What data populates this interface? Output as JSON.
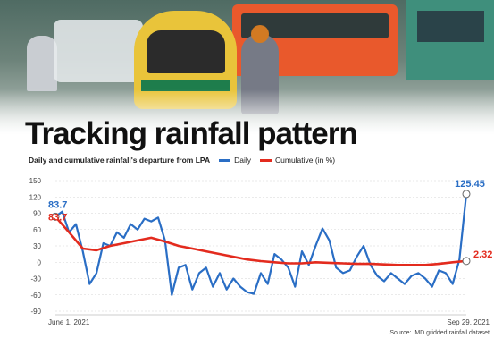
{
  "title": "Tracking rainfall pattern",
  "subtitle": "Daily and cumulative rainfall's departure from LPA",
  "legend": {
    "daily_label": "Daily",
    "cumulative_label": "Cumulative (in %)"
  },
  "source": "Source: IMD gridded rainfall dataset",
  "colors": {
    "daily": "#2a6ec5",
    "cumulative": "#e32b1e",
    "grid": "#d4d4d4"
  },
  "chart_data": {
    "type": "line",
    "title": "Tracking rainfall pattern",
    "subtitle": "Daily and cumulative rainfall's departure from LPA",
    "xlabel": "",
    "ylabel": "",
    "x_tick_labels": [
      "June 1, 2021",
      "Sep 29, 2021"
    ],
    "x_range": [
      "2021-06-01",
      "2021-09-29"
    ],
    "ylim": [
      -90,
      150
    ],
    "yticks": [
      150,
      120,
      90,
      60,
      30,
      0,
      -30,
      -60,
      -90
    ],
    "grid": false,
    "legend_position": "top",
    "annotations": [
      {
        "series": "Daily",
        "label": "83.7",
        "date": "2021-06-01",
        "value": 83.7
      },
      {
        "series": "Cumulative (in %)",
        "label": "83.7",
        "date": "2021-06-01",
        "value": 83.7
      },
      {
        "series": "Daily",
        "label": "125.45",
        "date": "2021-09-29",
        "value": 125.45
      },
      {
        "series": "Cumulative (in %)",
        "label": "2.32",
        "date": "2021-09-29",
        "value": 2.32
      }
    ],
    "series": [
      {
        "name": "Daily",
        "points": [
          [
            "2021-06-01",
            83.7
          ],
          [
            "2021-06-03",
            93
          ],
          [
            "2021-06-05",
            55
          ],
          [
            "2021-06-07",
            70
          ],
          [
            "2021-06-09",
            20
          ],
          [
            "2021-06-11",
            -40
          ],
          [
            "2021-06-13",
            -20
          ],
          [
            "2021-06-15",
            35
          ],
          [
            "2021-06-17",
            30
          ],
          [
            "2021-06-19",
            55
          ],
          [
            "2021-06-21",
            45
          ],
          [
            "2021-06-23",
            70
          ],
          [
            "2021-06-25",
            60
          ],
          [
            "2021-06-27",
            80
          ],
          [
            "2021-06-29",
            75
          ],
          [
            "2021-07-01",
            82
          ],
          [
            "2021-07-03",
            40
          ],
          [
            "2021-07-05",
            -60
          ],
          [
            "2021-07-07",
            -10
          ],
          [
            "2021-07-09",
            -5
          ],
          [
            "2021-07-11",
            -50
          ],
          [
            "2021-07-13",
            -20
          ],
          [
            "2021-07-15",
            -10
          ],
          [
            "2021-07-17",
            -45
          ],
          [
            "2021-07-19",
            -20
          ],
          [
            "2021-07-21",
            -50
          ],
          [
            "2021-07-23",
            -30
          ],
          [
            "2021-07-25",
            -45
          ],
          [
            "2021-07-27",
            -55
          ],
          [
            "2021-07-29",
            -58
          ],
          [
            "2021-07-31",
            -20
          ],
          [
            "2021-08-02",
            -40
          ],
          [
            "2021-08-04",
            15
          ],
          [
            "2021-08-06",
            5
          ],
          [
            "2021-08-08",
            -10
          ],
          [
            "2021-08-10",
            -45
          ],
          [
            "2021-08-12",
            20
          ],
          [
            "2021-08-14",
            -5
          ],
          [
            "2021-08-16",
            30
          ],
          [
            "2021-08-18",
            62
          ],
          [
            "2021-08-20",
            40
          ],
          [
            "2021-08-22",
            -10
          ],
          [
            "2021-08-24",
            -20
          ],
          [
            "2021-08-26",
            -15
          ],
          [
            "2021-08-28",
            10
          ],
          [
            "2021-08-30",
            30
          ],
          [
            "2021-09-01",
            -5
          ],
          [
            "2021-09-03",
            -25
          ],
          [
            "2021-09-05",
            -35
          ],
          [
            "2021-09-07",
            -20
          ],
          [
            "2021-09-09",
            -30
          ],
          [
            "2021-09-11",
            -40
          ],
          [
            "2021-09-13",
            -25
          ],
          [
            "2021-09-15",
            -20
          ],
          [
            "2021-09-17",
            -30
          ],
          [
            "2021-09-19",
            -45
          ],
          [
            "2021-09-21",
            -15
          ],
          [
            "2021-09-23",
            -20
          ],
          [
            "2021-09-25",
            -40
          ],
          [
            "2021-09-27",
            5
          ],
          [
            "2021-09-29",
            125.45
          ]
        ]
      },
      {
        "name": "Cumulative (in %)",
        "points": [
          [
            "2021-06-01",
            83.7
          ],
          [
            "2021-06-05",
            55
          ],
          [
            "2021-06-09",
            25
          ],
          [
            "2021-06-13",
            22
          ],
          [
            "2021-06-17",
            30
          ],
          [
            "2021-06-21",
            35
          ],
          [
            "2021-06-25",
            40
          ],
          [
            "2021-06-29",
            45
          ],
          [
            "2021-07-03",
            38
          ],
          [
            "2021-07-07",
            30
          ],
          [
            "2021-07-11",
            25
          ],
          [
            "2021-07-15",
            20
          ],
          [
            "2021-07-19",
            15
          ],
          [
            "2021-07-23",
            10
          ],
          [
            "2021-07-27",
            5
          ],
          [
            "2021-07-31",
            2
          ],
          [
            "2021-08-04",
            0
          ],
          [
            "2021-08-08",
            -2
          ],
          [
            "2021-08-12",
            -2
          ],
          [
            "2021-08-16",
            0
          ],
          [
            "2021-08-20",
            -1
          ],
          [
            "2021-08-24",
            -2
          ],
          [
            "2021-08-28",
            -3
          ],
          [
            "2021-09-01",
            -3
          ],
          [
            "2021-09-05",
            -4
          ],
          [
            "2021-09-09",
            -5
          ],
          [
            "2021-09-13",
            -5
          ],
          [
            "2021-09-17",
            -5
          ],
          [
            "2021-09-21",
            -3
          ],
          [
            "2021-09-25",
            0
          ],
          [
            "2021-09-29",
            2.32
          ]
        ]
      }
    ]
  }
}
